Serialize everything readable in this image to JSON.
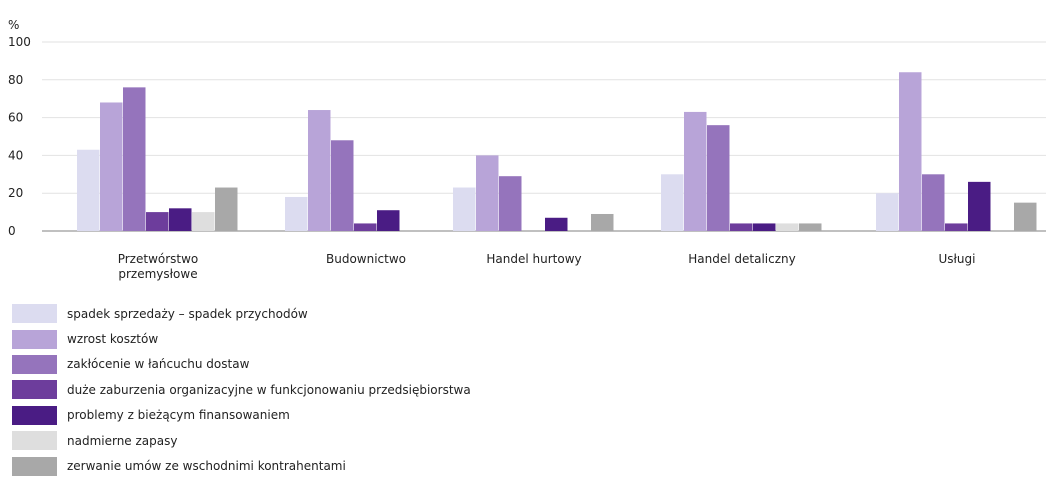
{
  "chart_data": {
    "type": "bar",
    "ylabel": "%",
    "ylim": [
      0,
      100
    ],
    "yticks": [
      0,
      20,
      40,
      60,
      80,
      100
    ],
    "grid": true,
    "legend_position": "bottom-left",
    "categories": [
      [
        "Przetwórstwo",
        "przemysłowe"
      ],
      [
        "Budownictwo"
      ],
      [
        "Handel hurtowy"
      ],
      [
        "Handel detaliczny"
      ],
      [
        "Usługi"
      ]
    ],
    "series": [
      {
        "name": "spadek sprzedaży – spadek przychodów",
        "color": "#dcdcf0",
        "values": [
          43,
          18,
          23,
          30,
          20
        ]
      },
      {
        "name": "wzrost kosztów",
        "color": "#b8a4d8",
        "values": [
          68,
          64,
          40,
          63,
          84
        ]
      },
      {
        "name": "zakłócenie w łańcuchu dostaw",
        "color": "#9574bc",
        "values": [
          76,
          48,
          29,
          56,
          30
        ]
      },
      {
        "name": "duże zaburzenia organizacyjne w funkcjonowaniu przedsiębiorstwa",
        "color": "#6d3d9c",
        "values": [
          10,
          4,
          0,
          4,
          4
        ]
      },
      {
        "name": "problemy z bieżącym finansowaniem",
        "color": "#4a1c84",
        "values": [
          12,
          11,
          7,
          4,
          26
        ]
      },
      {
        "name": "nadmierne zapasy",
        "color": "#dedede",
        "values": [
          10,
          0,
          0,
          4,
          0
        ]
      },
      {
        "name": "zerwanie umów ze wschodnimi kontrahentami",
        "color": "#a8a8a8",
        "values": [
          23,
          0,
          9,
          4,
          15
        ]
      }
    ]
  }
}
